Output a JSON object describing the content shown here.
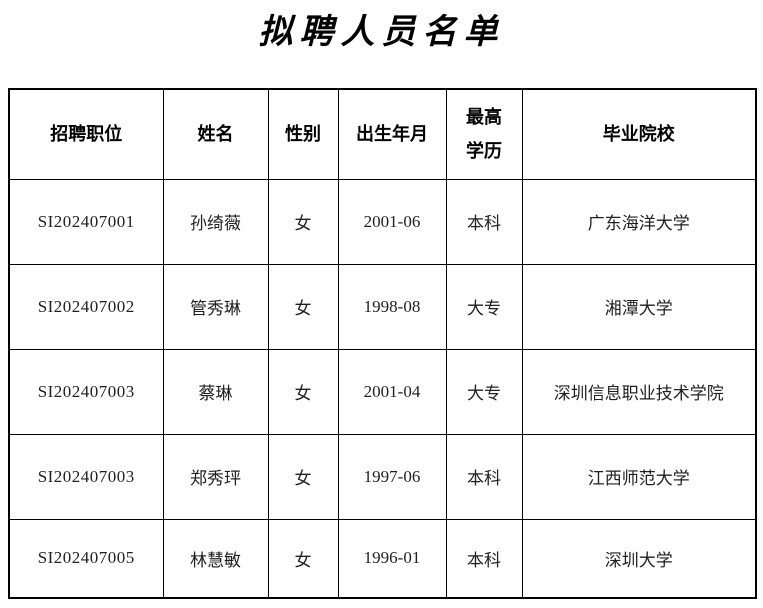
{
  "title": "拟聘人员名单",
  "table": {
    "headers": [
      "招聘职位",
      "姓名",
      "性别",
      "出生年月",
      "最高学历",
      "毕业院校"
    ],
    "rows": [
      [
        "SI202407001",
        "孙绮薇",
        "女",
        "2001-06",
        "本科",
        "广东海洋大学"
      ],
      [
        "SI202407002",
        "管秀琳",
        "女",
        "1998-08",
        "大专",
        "湘潭大学"
      ],
      [
        "SI202407003",
        "蔡琳",
        "女",
        "2001-04",
        "大专",
        "深圳信息职业技术学院"
      ],
      [
        "SI202407003",
        "郑秀玶",
        "女",
        "1997-06",
        "本科",
        "江西师范大学"
      ],
      [
        "SI202407005",
        "林慧敏",
        "女",
        "1996-01",
        "本科",
        "深圳大学"
      ]
    ]
  },
  "colors": {
    "border": "#000000",
    "text": "#1f1f1f",
    "background": "#ffffff"
  }
}
